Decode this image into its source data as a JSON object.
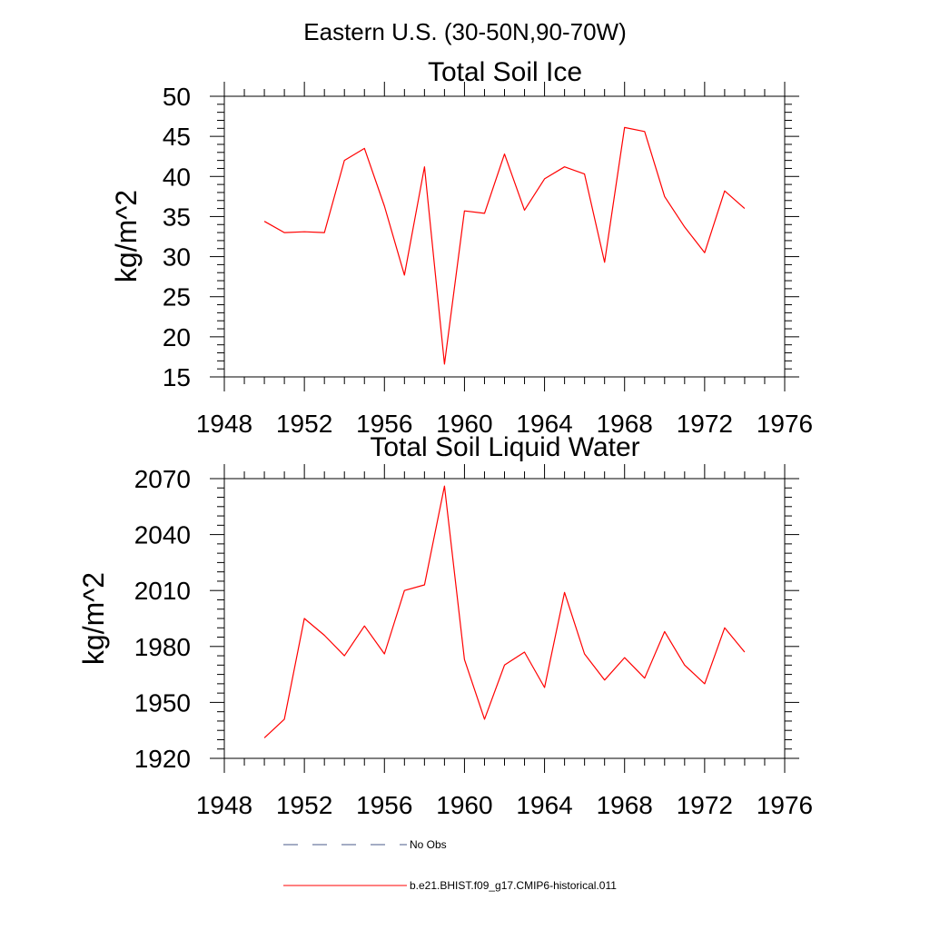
{
  "page_title": "Eastern U.S. (30-50N,90-70W)",
  "chart_data": [
    {
      "type": "line",
      "title": "Total Soil Ice",
      "xlabel": "",
      "ylabel": "kg/m^2",
      "xlim": [
        1948,
        1976
      ],
      "ylim": [
        15,
        50
      ],
      "xticks": [
        1948,
        1952,
        1956,
        1960,
        1964,
        1968,
        1972,
        1976
      ],
      "yticks": [
        15,
        20,
        25,
        30,
        35,
        40,
        45,
        50
      ],
      "grid": false,
      "series": [
        {
          "name": "b.e21.BHIST.f09_g17.CMIP6-historical.011",
          "color": "#ff0000",
          "x": [
            1950,
            1951,
            1952,
            1953,
            1954,
            1955,
            1956,
            1957,
            1958,
            1959,
            1960,
            1961,
            1962,
            1963,
            1964,
            1965,
            1966,
            1967,
            1968,
            1969,
            1970,
            1971,
            1972,
            1973,
            1974
          ],
          "y": [
            34.4,
            33.0,
            33.1,
            33.0,
            42.0,
            43.5,
            36.3,
            27.7,
            41.2,
            16.6,
            35.7,
            35.4,
            42.8,
            35.8,
            39.7,
            41.2,
            40.3,
            29.3,
            46.1,
            45.6,
            37.5,
            33.7,
            30.5,
            38.2,
            36.0
          ]
        }
      ]
    },
    {
      "type": "line",
      "title": "Total Soil Liquid Water",
      "xlabel": "",
      "ylabel": "kg/m^2",
      "xlim": [
        1948,
        1976
      ],
      "ylim": [
        1920,
        2070
      ],
      "xticks": [
        1948,
        1952,
        1956,
        1960,
        1964,
        1968,
        1972,
        1976
      ],
      "yticks": [
        1920,
        1950,
        1980,
        2010,
        2040,
        2070
      ],
      "grid": false,
      "series": [
        {
          "name": "b.e21.BHIST.f09_g17.CMIP6-historical.011",
          "color": "#ff0000",
          "x": [
            1950,
            1951,
            1952,
            1953,
            1954,
            1955,
            1956,
            1957,
            1958,
            1959,
            1960,
            1961,
            1962,
            1963,
            1964,
            1965,
            1966,
            1967,
            1968,
            1969,
            1970,
            1971,
            1972,
            1973,
            1974
          ],
          "y": [
            1931,
            1941,
            1995,
            1986,
            1975,
            1991,
            1976,
            2010,
            2013,
            2066,
            1973,
            1941,
            1970,
            1977,
            1958,
            2009,
            1976,
            1962,
            1974,
            1963,
            1988,
            1970,
            1960,
            1990,
            1977
          ]
        }
      ]
    }
  ],
  "legend": {
    "items": [
      {
        "label": "No Obs",
        "style": "dashed",
        "color": "#4a5a8a"
      },
      {
        "label": "b.e21.BHIST.f09_g17.CMIP6-historical.011",
        "style": "solid",
        "color": "#ff0000"
      }
    ]
  }
}
